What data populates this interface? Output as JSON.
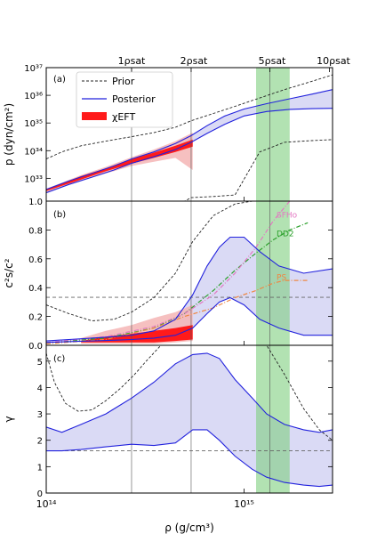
{
  "colors": {
    "prior": "#222222",
    "posterior_line": "#2222dd",
    "posterior_fill": "#dadaf5",
    "chieft_dark": "#ff1a1a",
    "chieft_light": "#f5b5b5",
    "band_5rho": "#7fcf7f",
    "dd2": "#2ca02c",
    "sfho": "#e377c2",
    "ps": "#ee8844"
  },
  "chart_data": [
    {
      "panel_label": "(a)",
      "type": "area",
      "xlabel": "ρ (g/cm³)",
      "ylabel": "p (dyn/cm²)",
      "log_x": true,
      "log_y": true,
      "xlim": [
        100000000000000.0,
        2800000000000000.0
      ],
      "ylim": [
        1.5e+32,
        1e+37
      ],
      "y_tick_labels": [
        "10³³",
        "10³⁴",
        "10³⁵",
        "10³⁶",
        "10³⁷"
      ],
      "legend": {
        "placement": "top-left",
        "entries": [
          "Prior",
          "Posterior",
          "χEFT"
        ]
      },
      "top_axis_labels": [
        "1ρsat",
        "2ρsat",
        "5ρsat",
        "10ρsat"
      ],
      "top_axis_values": [
        270000000000000.0,
        540000000000000.0,
        1350000000000000.0,
        2700000000000000.0
      ],
      "vertical_lines": [
        270000000000000.0,
        540000000000000.0,
        1350000000000000.0
      ],
      "band": [
        1150000000000000.0,
        1700000000000000.0
      ],
      "series": [
        {
          "name": "Prior",
          "style": "dashed",
          "x": [
            100000000000000.0,
            120000000000000.0,
            150000000000000.0,
            200000000000000.0,
            270000000000000.0,
            350000000000000.0,
            450000000000000.0,
            540000000000000.0,
            700000000000000.0,
            900000000000000.0,
            1200000000000000.0,
            1600000000000000.0,
            2200000000000000.0,
            2800000000000000.0
          ],
          "upper": [
            5e+33,
            9e+33,
            1.5e+34,
            2.2e+34,
            3.2e+34,
            4.5e+34,
            7e+34,
            1.2e+35,
            2.2e+35,
            4e+35,
            8e+35,
            1.6e+36,
            3.2e+36,
            5.5e+36
          ],
          "lower": [
            1e+32,
            1e+32,
            1e+32,
            1e+32,
            1e+32,
            1e+32,
            1e+32,
            2e+32,
            2.2e+32,
            2.5e+32,
            9e+33,
            2e+34,
            2.3e+34,
            2.5e+34
          ]
        },
        {
          "name": "Posterior",
          "style": "solid",
          "x": [
            100000000000000.0,
            130000000000000.0,
            170000000000000.0,
            220000000000000.0,
            270000000000000.0,
            350000000000000.0,
            450000000000000.0,
            540000000000000.0,
            650000000000000.0,
            800000000000000.0,
            1000000000000000.0,
            1300000000000000.0,
            1700000000000000.0,
            2200000000000000.0,
            2800000000000000.0
          ],
          "upper": [
            4e+32,
            8e+32,
            1.5e+33,
            2.8e+33,
            5e+33,
            9e+33,
            1.8e+34,
            3.5e+34,
            8e+34,
            1.8e+35,
            3.2e+35,
            5e+35,
            7.5e+35,
            1.1e+36,
            1.6e+36
          ],
          "lower": [
            3e+32,
            6e+32,
            1.1e+33,
            2e+33,
            3.5e+33,
            6e+33,
            1.1e+34,
            2e+34,
            4.2e+34,
            9e+34,
            1.8e+35,
            2.6e+35,
            3.1e+35,
            3.3e+35,
            3.4e+35
          ]
        },
        {
          "name": "χEFT",
          "style": "band",
          "x": [
            100000000000000.0,
            150000000000000.0,
            200000000000000.0,
            270000000000000.0,
            350000000000000.0,
            450000000000000.0,
            550000000000000.0
          ],
          "upper_dark": [
            4e+32,
            1.2e+33,
            2.3e+33,
            5e+33,
            8.5e+33,
            1.5e+34,
            2.5e+34
          ],
          "lower_dark": [
            3.5e+32,
            9e+32,
            1.8e+33,
            3.4e+33,
            5.5e+33,
            9e+33,
            1.4e+34
          ],
          "upper_light": [
            4.2e+32,
            1.3e+33,
            2.6e+33,
            5.8e+33,
            1.1e+34,
            2.2e+34,
            4.5e+34
          ],
          "lower_light": [
            3.2e+32,
            8e+32,
            1.5e+33,
            2.8e+33,
            4e+33,
            5.5e+33,
            2e+33
          ]
        }
      ]
    },
    {
      "panel_label": "(b)",
      "type": "area",
      "ylabel": "c²s/c²",
      "log_x": true,
      "xlim": [
        100000000000000.0,
        2800000000000000.0
      ],
      "ylim": [
        0,
        1
      ],
      "y_tick_labels": [
        "0.0",
        "0.2",
        "0.4",
        "0.6",
        "0.8",
        "1.0"
      ],
      "y_ticks": [
        0,
        0.2,
        0.4,
        0.6,
        0.8,
        1.0
      ],
      "conformal_limit": 0.333,
      "vertical_lines": [
        270000000000000.0,
        540000000000000.0,
        1350000000000000.0
      ],
      "band": [
        1150000000000000.0,
        1700000000000000.0
      ],
      "series": [
        {
          "name": "Prior",
          "style": "dashed",
          "x": [
            100000000000000.0,
            130000000000000.0,
            170000000000000.0,
            220000000000000.0,
            270000000000000.0,
            350000000000000.0,
            450000000000000.0,
            550000000000000.0,
            700000000000000.0,
            900000000000000.0,
            1100000000000000.0
          ],
          "upper": [
            0.28,
            0.22,
            0.17,
            0.18,
            0.23,
            0.33,
            0.5,
            0.72,
            0.9,
            0.98,
            1.0
          ],
          "lower": [
            0,
            0,
            0,
            0,
            0,
            0,
            0,
            0,
            0,
            0,
            0
          ]
        },
        {
          "name": "Posterior",
          "style": "solid",
          "x": [
            100000000000000.0,
            130000000000000.0,
            170000000000000.0,
            220000000000000.0,
            270000000000000.0,
            350000000000000.0,
            450000000000000.0,
            550000000000000.0,
            650000000000000.0,
            750000000000000.0,
            850000000000000.0,
            1000000000000000.0,
            1200000000000000.0,
            1500000000000000.0,
            2000000000000000.0,
            2800000000000000.0
          ],
          "upper": [
            0.03,
            0.04,
            0.05,
            0.06,
            0.07,
            0.1,
            0.18,
            0.35,
            0.55,
            0.68,
            0.75,
            0.75,
            0.65,
            0.55,
            0.5,
            0.53
          ],
          "lower": [
            0.02,
            0.025,
            0.03,
            0.035,
            0.04,
            0.05,
            0.07,
            0.12,
            0.22,
            0.3,
            0.33,
            0.28,
            0.18,
            0.12,
            0.07,
            0.07
          ]
        },
        {
          "name": "χEFT",
          "style": "band",
          "x": [
            150000000000000.0,
            200000000000000.0,
            270000000000000.0,
            350000000000000.0,
            450000000000000.0,
            550000000000000.0
          ],
          "upper_dark": [
            0.03,
            0.06,
            0.08,
            0.1,
            0.12,
            0.14
          ],
          "lower_dark": [
            0.02,
            0.02,
            0.02,
            0.02,
            0.03,
            0.04
          ],
          "upper_light": [
            0.05,
            0.1,
            0.14,
            0.19,
            0.23,
            0.28
          ],
          "lower_light": [
            0.01,
            0.01,
            0.01,
            0.01,
            0.02,
            0.03
          ]
        },
        {
          "name": "DD2",
          "style": "dashdot",
          "x": [
            100000000000000.0,
            200000000000000.0,
            350000000000000.0,
            500000000000000.0,
            700000000000000.0,
            900000000000000.0,
            1150000000000000.0,
            1400000000000000.0,
            1700000000000000.0,
            2100000000000000.0
          ],
          "values": [
            0.02,
            0.05,
            0.12,
            0.22,
            0.38,
            0.52,
            0.64,
            0.73,
            0.8,
            0.85
          ]
        },
        {
          "name": "SFHo",
          "style": "dashdot",
          "x": [
            100000000000000.0,
            200000000000000.0,
            350000000000000.0,
            500000000000000.0,
            700000000000000.0,
            900000000000000.0,
            1150000000000000.0,
            1400000000000000.0,
            1700000000000000.0
          ],
          "values": [
            0.02,
            0.06,
            0.13,
            0.22,
            0.35,
            0.5,
            0.68,
            0.86,
            1.0
          ]
        },
        {
          "name": "PS",
          "style": "dashdot",
          "x": [
            100000000000000.0,
            200000000000000.0,
            350000000000000.0,
            500000000000000.0,
            700000000000000.0,
            900000000000000.0,
            1150000000000000.0,
            1400000000000000.0,
            1600000000000000.0,
            2100000000000000.0
          ],
          "values": [
            0.01,
            0.04,
            0.12,
            0.2,
            0.26,
            0.33,
            0.38,
            0.43,
            0.45,
            0.45
          ]
        }
      ]
    },
    {
      "panel_label": "(c)",
      "type": "area",
      "ylabel": "γ",
      "log_x": true,
      "xlim": [
        100000000000000.0,
        2800000000000000.0
      ],
      "ylim": [
        0,
        5.6
      ],
      "y_tick_labels": [
        "0",
        "1",
        "2",
        "3",
        "4",
        "5"
      ],
      "y_ticks": [
        0,
        1,
        2,
        3,
        4,
        5
      ],
      "x_tick_labels": [
        "10¹⁴",
        "10¹⁵"
      ],
      "x_ticks": [
        100000000000000.0,
        1000000000000000.0
      ],
      "reference_line": 1.6,
      "vertical_lines": [
        270000000000000.0,
        540000000000000.0,
        1350000000000000.0
      ],
      "band": [
        1150000000000000.0,
        1700000000000000.0
      ],
      "series": [
        {
          "name": "Prior",
          "style": "dashed",
          "x": [
            100000000000000.0,
            110000000000000.0,
            125000000000000.0,
            145000000000000.0,
            170000000000000.0,
            200000000000000.0,
            240000000000000.0,
            280000000000000.0,
            320000000000000.0,
            380000000000000.0,
            450000000000000.0,
            550000000000000.0,
            700000000000000.0,
            900000000000000.0,
            1100000000000000.0,
            1300000000000000.0,
            1600000000000000.0,
            2000000000000000.0,
            2400000000000000.0,
            2800000000000000.0
          ],
          "upper": [
            5.3,
            4.2,
            3.4,
            3.1,
            3.15,
            3.5,
            4.0,
            4.5,
            5.0,
            5.6,
            5.6,
            5.6,
            5.6,
            5.6,
            5.6,
            5.6,
            4.5,
            3.2,
            2.4,
            2.0
          ],
          "lower": [
            0,
            0,
            0,
            0,
            0,
            0,
            0,
            0,
            0,
            0,
            0,
            0,
            0,
            0,
            0,
            0,
            0,
            0,
            0,
            0
          ]
        },
        {
          "name": "Posterior",
          "style": "solid",
          "x": [
            100000000000000.0,
            120000000000000.0,
            150000000000000.0,
            200000000000000.0,
            270000000000000.0,
            350000000000000.0,
            450000000000000.0,
            550000000000000.0,
            650000000000000.0,
            750000000000000.0,
            900000000000000.0,
            1100000000000000.0,
            1300000000000000.0,
            1600000000000000.0,
            2000000000000000.0,
            2400000000000000.0,
            2800000000000000.0
          ],
          "upper": [
            2.5,
            2.3,
            2.6,
            3.0,
            3.6,
            4.2,
            4.9,
            5.25,
            5.3,
            5.1,
            4.3,
            3.6,
            3.0,
            2.6,
            2.4,
            2.3,
            2.4
          ],
          "lower": [
            1.6,
            1.6,
            1.65,
            1.75,
            1.85,
            1.8,
            1.9,
            2.4,
            2.4,
            2.0,
            1.4,
            0.9,
            0.6,
            0.4,
            0.3,
            0.25,
            0.3
          ]
        }
      ]
    }
  ]
}
